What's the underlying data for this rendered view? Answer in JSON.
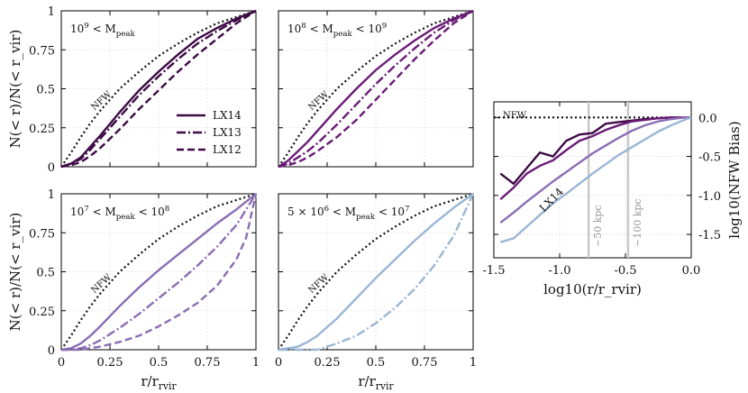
{
  "colors": {
    "lx14_1e9": "#3d0a45",
    "lx14_1e8": "#6a1b76",
    "lx14_1e7": "#8a6db3",
    "lx14_5e6": "#9ab6d4",
    "nfw": "#111111",
    "vline": "#c8c8c8"
  },
  "chart_data": [
    {
      "type": "line",
      "panel": "top-left",
      "title": "10^9 < M_peak",
      "xlabel": "",
      "ylabel": "N(< r)/N(< r_vir)",
      "xlim": [
        0,
        1
      ],
      "ylim": [
        0,
        1
      ],
      "xticks": [
        "",
        "",
        "",
        "",
        ""
      ],
      "yticks": [
        "0",
        "0.25",
        "0.5",
        "0.75",
        "1"
      ],
      "color": "#3d0a45",
      "legend": [
        "LX14",
        "LX13",
        "LX12"
      ],
      "nfw_label": "NFW",
      "nfw": {
        "x": [
          0,
          0.05,
          0.1,
          0.15,
          0.2,
          0.3,
          0.4,
          0.5,
          0.6,
          0.7,
          0.8,
          0.9,
          1.0
        ],
        "y": [
          0,
          0.09,
          0.19,
          0.28,
          0.36,
          0.5,
          0.61,
          0.71,
          0.79,
          0.86,
          0.92,
          0.96,
          1.0
        ]
      },
      "series": [
        {
          "name": "LX14",
          "dash": "solid",
          "x": [
            0,
            0.05,
            0.1,
            0.15,
            0.2,
            0.3,
            0.4,
            0.5,
            0.6,
            0.7,
            0.8,
            0.9,
            1.0
          ],
          "y": [
            0,
            0.02,
            0.06,
            0.13,
            0.2,
            0.35,
            0.49,
            0.61,
            0.72,
            0.82,
            0.89,
            0.95,
            1.0
          ]
        },
        {
          "name": "LX13",
          "dash": "dashdot",
          "x": [
            0,
            0.05,
            0.1,
            0.15,
            0.2,
            0.3,
            0.4,
            0.5,
            0.6,
            0.7,
            0.8,
            0.9,
            1.0
          ],
          "y": [
            0,
            0.02,
            0.05,
            0.11,
            0.18,
            0.32,
            0.46,
            0.58,
            0.69,
            0.79,
            0.87,
            0.94,
            1.0
          ]
        },
        {
          "name": "LX12",
          "dash": "dashed",
          "x": [
            0,
            0.05,
            0.1,
            0.15,
            0.2,
            0.3,
            0.4,
            0.5,
            0.6,
            0.7,
            0.8,
            0.9,
            1.0
          ],
          "y": [
            0,
            0.01,
            0.03,
            0.07,
            0.12,
            0.24,
            0.37,
            0.49,
            0.61,
            0.72,
            0.82,
            0.92,
            1.0
          ]
        }
      ]
    },
    {
      "type": "line",
      "panel": "top-middle",
      "title": "10^8 < M_peak < 10^9",
      "xlabel": "",
      "ylabel": "",
      "xlim": [
        0,
        1
      ],
      "ylim": [
        0,
        1
      ],
      "xticks": [
        "",
        "",
        "",
        "",
        ""
      ],
      "yticks": [
        "",
        "",
        "",
        "",
        ""
      ],
      "color": "#6a1b76",
      "nfw_label": "NFW",
      "nfw": {
        "x": [
          0,
          0.05,
          0.1,
          0.15,
          0.2,
          0.3,
          0.4,
          0.5,
          0.6,
          0.7,
          0.8,
          0.9,
          1.0
        ],
        "y": [
          0,
          0.09,
          0.19,
          0.28,
          0.36,
          0.5,
          0.61,
          0.71,
          0.79,
          0.86,
          0.92,
          0.96,
          1.0
        ]
      },
      "series": [
        {
          "name": "LX14",
          "dash": "solid",
          "x": [
            0,
            0.05,
            0.1,
            0.15,
            0.2,
            0.3,
            0.4,
            0.5,
            0.6,
            0.7,
            0.8,
            0.9,
            1.0
          ],
          "y": [
            0,
            0.04,
            0.1,
            0.16,
            0.23,
            0.37,
            0.5,
            0.62,
            0.72,
            0.81,
            0.89,
            0.95,
            1.0
          ]
        },
        {
          "name": "LX13",
          "dash": "dashdot",
          "x": [
            0,
            0.05,
            0.1,
            0.15,
            0.2,
            0.3,
            0.4,
            0.5,
            0.6,
            0.7,
            0.8,
            0.9,
            1.0
          ],
          "y": [
            0,
            0.02,
            0.06,
            0.1,
            0.15,
            0.27,
            0.4,
            0.53,
            0.65,
            0.76,
            0.86,
            0.94,
            1.0
          ]
        },
        {
          "name": "LX12",
          "dash": "dashed",
          "x": [
            0,
            0.05,
            0.1,
            0.15,
            0.2,
            0.3,
            0.4,
            0.5,
            0.6,
            0.7,
            0.8,
            0.9,
            1.0
          ],
          "y": [
            0,
            0.01,
            0.03,
            0.06,
            0.1,
            0.19,
            0.3,
            0.43,
            0.56,
            0.69,
            0.81,
            0.92,
            1.0
          ]
        }
      ]
    },
    {
      "type": "line",
      "panel": "bottom-left",
      "title": "10^7 < M_peak < 10^8",
      "xlabel": "r/r_rvir",
      "ylabel": "N(< r)/N(< r_vir)",
      "xlim": [
        0,
        1
      ],
      "ylim": [
        0,
        1
      ],
      "xticks": [
        "0",
        "0.25",
        "0.5",
        "0.75",
        "1"
      ],
      "yticks": [
        "0",
        "0.25",
        "0.5",
        "0.75",
        "1"
      ],
      "color": "#8a6db3",
      "nfw_label": "NFW",
      "nfw": {
        "x": [
          0,
          0.05,
          0.1,
          0.15,
          0.2,
          0.3,
          0.4,
          0.5,
          0.6,
          0.7,
          0.8,
          0.9,
          1.0
        ],
        "y": [
          0,
          0.09,
          0.19,
          0.28,
          0.36,
          0.5,
          0.61,
          0.71,
          0.79,
          0.86,
          0.92,
          0.96,
          1.0
        ]
      },
      "series": [
        {
          "name": "LX14",
          "dash": "solid",
          "x": [
            0,
            0.05,
            0.1,
            0.15,
            0.2,
            0.3,
            0.4,
            0.5,
            0.6,
            0.7,
            0.8,
            0.9,
            1.0
          ],
          "y": [
            0,
            0.01,
            0.04,
            0.09,
            0.15,
            0.28,
            0.4,
            0.51,
            0.61,
            0.71,
            0.81,
            0.9,
            1.0
          ]
        },
        {
          "name": "LX13",
          "dash": "dashdot",
          "x": [
            0,
            0.05,
            0.1,
            0.15,
            0.2,
            0.3,
            0.4,
            0.5,
            0.6,
            0.7,
            0.8,
            0.9,
            1.0
          ],
          "y": [
            0,
            0.0,
            0.01,
            0.03,
            0.06,
            0.14,
            0.23,
            0.33,
            0.43,
            0.54,
            0.66,
            0.8,
            1.0
          ]
        },
        {
          "name": "LX12",
          "dash": "dashed",
          "x": [
            0,
            0.05,
            0.1,
            0.15,
            0.2,
            0.3,
            0.4,
            0.5,
            0.6,
            0.7,
            0.8,
            0.9,
            0.95,
            1.0
          ],
          "y": [
            0,
            0.0,
            0.0,
            0.01,
            0.02,
            0.05,
            0.09,
            0.15,
            0.22,
            0.3,
            0.41,
            0.58,
            0.72,
            1.0
          ]
        }
      ]
    },
    {
      "type": "line",
      "panel": "bottom-middle",
      "title": "5 × 10^6 < M_peak < 10^7",
      "xlabel": "r/r_rvir",
      "ylabel": "",
      "xlim": [
        0,
        1
      ],
      "ylim": [
        0,
        1
      ],
      "xticks": [
        "0",
        "0.25",
        "0.5",
        "0.75",
        "1"
      ],
      "yticks": [
        "",
        "",
        "",
        "",
        ""
      ],
      "color": "#9ab6d4",
      "nfw_label": "NFW",
      "nfw": {
        "x": [
          0,
          0.05,
          0.1,
          0.15,
          0.2,
          0.3,
          0.4,
          0.5,
          0.6,
          0.7,
          0.8,
          0.9,
          1.0
        ],
        "y": [
          0,
          0.09,
          0.19,
          0.28,
          0.36,
          0.5,
          0.61,
          0.71,
          0.79,
          0.86,
          0.92,
          0.96,
          1.0
        ]
      },
      "series": [
        {
          "name": "LX14",
          "dash": "solid",
          "x": [
            0,
            0.05,
            0.1,
            0.15,
            0.2,
            0.3,
            0.4,
            0.5,
            0.6,
            0.7,
            0.8,
            0.9,
            1.0
          ],
          "y": [
            0,
            0.01,
            0.02,
            0.05,
            0.09,
            0.2,
            0.33,
            0.46,
            0.58,
            0.7,
            0.81,
            0.91,
            1.0
          ]
        },
        {
          "name": "LX13",
          "dash": "dashdot",
          "x": [
            0,
            0.2,
            0.25,
            0.3,
            0.4,
            0.5,
            0.6,
            0.7,
            0.8,
            0.9,
            1.0
          ],
          "y": [
            0,
            0.0,
            0.02,
            0.04,
            0.09,
            0.17,
            0.27,
            0.39,
            0.54,
            0.73,
            1.0
          ]
        }
      ]
    },
    {
      "type": "line",
      "panel": "right",
      "title": "",
      "xlabel": "log10(r/r_rvir)",
      "ylabel": "log10(NFW Bias)",
      "xlim": [
        -1.5,
        0.0
      ],
      "ylim": [
        -1.8,
        0.2
      ],
      "xticks": [
        "-1.5",
        "-1.0",
        "-0.5",
        "0.0"
      ],
      "yticks": [
        "0.0",
        "-0.5",
        "-1.0",
        "-1.5"
      ],
      "nfw_label": "NFW",
      "series_label": "LX14",
      "vlines": [
        {
          "x": -0.78,
          "label": "~50 kpc"
        },
        {
          "x": -0.48,
          "label": "~100 kpc"
        }
      ],
      "nfw": {
        "x": [
          -1.5,
          0.0
        ],
        "y": [
          0.0,
          0.0
        ]
      },
      "series": [
        {
          "name": "10^9 < M_peak",
          "color": "#3d0a45",
          "x": [
            -1.45,
            -1.35,
            -1.25,
            -1.15,
            -1.05,
            -0.95,
            -0.85,
            -0.75,
            -0.65,
            -0.55,
            -0.45,
            -0.35,
            -0.25,
            -0.15,
            -0.05,
            0.0
          ],
          "y": [
            -0.72,
            -0.85,
            -0.65,
            -0.45,
            -0.5,
            -0.3,
            -0.22,
            -0.2,
            -0.08,
            -0.06,
            -0.04,
            -0.02,
            -0.01,
            0.0,
            0.0,
            0.0
          ]
        },
        {
          "name": "10^8 < M_peak < 10^9",
          "color": "#6a1b76",
          "x": [
            -1.45,
            -1.35,
            -1.25,
            -1.15,
            -1.05,
            -0.95,
            -0.85,
            -0.75,
            -0.65,
            -0.55,
            -0.45,
            -0.35,
            -0.25,
            -0.15,
            -0.05,
            0.0
          ],
          "y": [
            -1.05,
            -0.9,
            -0.72,
            -0.62,
            -0.55,
            -0.42,
            -0.3,
            -0.24,
            -0.16,
            -0.1,
            -0.05,
            -0.03,
            -0.01,
            0.0,
            0.0,
            0.0
          ]
        },
        {
          "name": "10^7 < M_peak < 10^8",
          "color": "#8a6db3",
          "x": [
            -1.45,
            -1.35,
            -1.25,
            -1.15,
            -1.05,
            -0.95,
            -0.85,
            -0.75,
            -0.65,
            -0.55,
            -0.45,
            -0.35,
            -0.25,
            -0.15,
            -0.05,
            0.0
          ],
          "y": [
            -1.35,
            -1.22,
            -1.08,
            -0.95,
            -0.82,
            -0.7,
            -0.58,
            -0.46,
            -0.36,
            -0.26,
            -0.17,
            -0.1,
            -0.05,
            -0.02,
            0.0,
            0.0
          ]
        },
        {
          "name": "5 × 10^6 < M_peak < 10^7",
          "color": "#9ab6d4",
          "x": [
            -1.45,
            -1.35,
            -1.25,
            -1.15,
            -1.05,
            -0.95,
            -0.85,
            -0.75,
            -0.65,
            -0.55,
            -0.45,
            -0.35,
            -0.25,
            -0.15,
            -0.05,
            0.0
          ],
          "y": [
            -1.6,
            -1.55,
            -1.4,
            -1.25,
            -1.1,
            -0.98,
            -0.85,
            -0.72,
            -0.6,
            -0.48,
            -0.38,
            -0.28,
            -0.18,
            -0.1,
            -0.03,
            0.0
          ]
        }
      ]
    }
  ]
}
